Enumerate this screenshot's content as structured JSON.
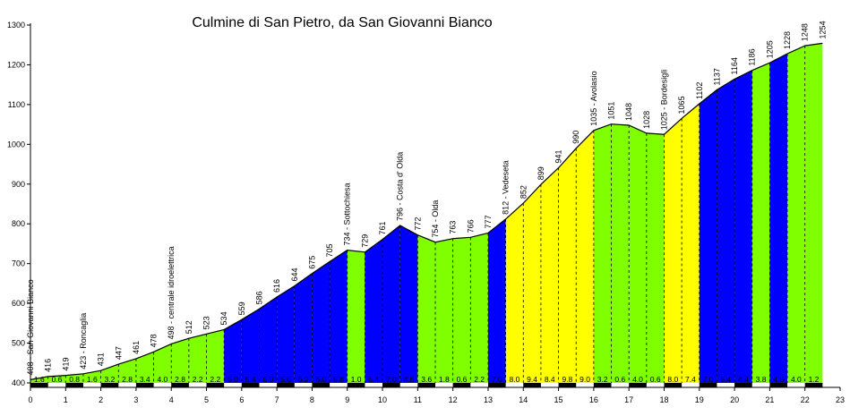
{
  "chart_data": {
    "type": "area",
    "title": "Culmine di San Pietro, da San Giovanni Bianco",
    "xlabel": "",
    "ylabel": "",
    "xlim": [
      0,
      23
    ],
    "ylim": [
      400,
      1300
    ],
    "x_ticks": [
      "0",
      "1",
      "2",
      "3",
      "4",
      "5",
      "6",
      "7",
      "8",
      "9",
      "10",
      "11",
      "12",
      "13",
      "14",
      "15",
      "16",
      "17",
      "18",
      "19",
      "20",
      "21",
      "22",
      "23"
    ],
    "y_ticks": [
      "400",
      "500",
      "600",
      "700",
      "800",
      "900",
      "1000",
      "1100",
      "1200",
      "1300"
    ],
    "grid": false,
    "legend": "none",
    "colors": {
      "green": "#80ff00",
      "blue": "#0000ff",
      "yellow": "#ffff00",
      "profile_line": "#000000",
      "dash": "#000000"
    },
    "profile": [
      {
        "x": 0.0,
        "y": 408,
        "label": "408 - San Giovanni Bianco"
      },
      {
        "x": 0.5,
        "y": 416,
        "label": "416"
      },
      {
        "x": 1.0,
        "y": 419,
        "label": "419"
      },
      {
        "x": 1.5,
        "y": 423,
        "label": "423 - Roncaglia"
      },
      {
        "x": 2.0,
        "y": 431,
        "label": "431"
      },
      {
        "x": 2.5,
        "y": 447,
        "label": "447"
      },
      {
        "x": 3.0,
        "y": 461,
        "label": "461"
      },
      {
        "x": 3.5,
        "y": 478,
        "label": "478"
      },
      {
        "x": 4.0,
        "y": 498,
        "label": "498 - centrale idroelettrica"
      },
      {
        "x": 4.5,
        "y": 512,
        "label": "512"
      },
      {
        "x": 5.0,
        "y": 523,
        "label": "523"
      },
      {
        "x": 5.5,
        "y": 534,
        "label": "534"
      },
      {
        "x": 6.0,
        "y": 559,
        "label": "559"
      },
      {
        "x": 6.5,
        "y": 586,
        "label": "586"
      },
      {
        "x": 7.0,
        "y": 616,
        "label": "616"
      },
      {
        "x": 7.5,
        "y": 644,
        "label": "644"
      },
      {
        "x": 8.0,
        "y": 675,
        "label": "675"
      },
      {
        "x": 8.5,
        "y": 705,
        "label": "705"
      },
      {
        "x": 9.0,
        "y": 734,
        "label": "734 - Sottochiesa"
      },
      {
        "x": 9.5,
        "y": 729,
        "label": "729"
      },
      {
        "x": 10.0,
        "y": 761,
        "label": "761"
      },
      {
        "x": 10.5,
        "y": 796,
        "label": "796 - Costa d' Olda"
      },
      {
        "x": 11.0,
        "y": 772,
        "label": "772"
      },
      {
        "x": 11.5,
        "y": 754,
        "label": "754 - Olda"
      },
      {
        "x": 12.0,
        "y": 763,
        "label": "763"
      },
      {
        "x": 12.5,
        "y": 766,
        "label": "766"
      },
      {
        "x": 13.0,
        "y": 777,
        "label": "777"
      },
      {
        "x": 13.5,
        "y": 812,
        "label": "812 - Vedeseta"
      },
      {
        "x": 14.0,
        "y": 852,
        "label": "852"
      },
      {
        "x": 14.5,
        "y": 899,
        "label": "899"
      },
      {
        "x": 15.0,
        "y": 941,
        "label": "941"
      },
      {
        "x": 15.5,
        "y": 990,
        "label": "990"
      },
      {
        "x": 16.0,
        "y": 1035,
        "label": "1035 - Avolasio"
      },
      {
        "x": 16.5,
        "y": 1051,
        "label": "1051"
      },
      {
        "x": 17.0,
        "y": 1048,
        "label": "1048"
      },
      {
        "x": 17.5,
        "y": 1028,
        "label": "1028"
      },
      {
        "x": 18.0,
        "y": 1025,
        "label": "1025 - Bordesigli"
      },
      {
        "x": 18.5,
        "y": 1065,
        "label": "1065"
      },
      {
        "x": 19.0,
        "y": 1102,
        "label": "1102"
      },
      {
        "x": 19.5,
        "y": 1137,
        "label": "1137"
      },
      {
        "x": 20.0,
        "y": 1164,
        "label": "1164"
      },
      {
        "x": 20.5,
        "y": 1186,
        "label": "1186"
      },
      {
        "x": 21.0,
        "y": 1205,
        "label": "1205"
      },
      {
        "x": 21.5,
        "y": 1228,
        "label": "1228"
      },
      {
        "x": 22.0,
        "y": 1248,
        "label": "1248"
      },
      {
        "x": 22.5,
        "y": 1254,
        "label": "1254"
      }
    ],
    "segments": [
      {
        "x0": 0.0,
        "x1": 0.5,
        "grade": "1.6",
        "color": "green"
      },
      {
        "x0": 0.5,
        "x1": 1.0,
        "grade": "0.6",
        "color": "green"
      },
      {
        "x0": 1.0,
        "x1": 1.5,
        "grade": "0.8",
        "color": "green"
      },
      {
        "x0": 1.5,
        "x1": 2.0,
        "grade": "1.6",
        "color": "green"
      },
      {
        "x0": 2.0,
        "x1": 2.5,
        "grade": "3.2",
        "color": "green"
      },
      {
        "x0": 2.5,
        "x1": 3.0,
        "grade": "2.8",
        "color": "green"
      },
      {
        "x0": 3.0,
        "x1": 3.5,
        "grade": "3.4",
        "color": "green"
      },
      {
        "x0": 3.5,
        "x1": 4.0,
        "grade": "4.0",
        "color": "green"
      },
      {
        "x0": 4.0,
        "x1": 4.5,
        "grade": "2.8",
        "color": "green"
      },
      {
        "x0": 4.5,
        "x1": 5.0,
        "grade": "2.2",
        "color": "green"
      },
      {
        "x0": 5.0,
        "x1": 5.5,
        "grade": "2.2",
        "color": "green"
      },
      {
        "x0": 5.5,
        "x1": 6.0,
        "grade": "5.0",
        "color": "blue"
      },
      {
        "x0": 6.0,
        "x1": 6.5,
        "grade": "5.4",
        "color": "blue"
      },
      {
        "x0": 6.5,
        "x1": 7.0,
        "grade": "6.0",
        "color": "blue"
      },
      {
        "x0": 7.0,
        "x1": 7.5,
        "grade": "5.6",
        "color": "blue"
      },
      {
        "x0": 7.5,
        "x1": 8.0,
        "grade": "6.2",
        "color": "blue"
      },
      {
        "x0": 8.0,
        "x1": 8.5,
        "grade": "6.0",
        "color": "blue"
      },
      {
        "x0": 8.5,
        "x1": 9.0,
        "grade": "5.8",
        "color": "blue"
      },
      {
        "x0": 9.0,
        "x1": 9.5,
        "grade": "1.0",
        "color": "green"
      },
      {
        "x0": 9.5,
        "x1": 10.0,
        "grade": "6.4",
        "color": "blue"
      },
      {
        "x0": 10.0,
        "x1": 10.5,
        "grade": "7.0",
        "color": "blue"
      },
      {
        "x0": 10.5,
        "x1": 11.0,
        "grade": "4.8",
        "color": "blue"
      },
      {
        "x0": 11.0,
        "x1": 11.5,
        "grade": "3.6",
        "color": "green"
      },
      {
        "x0": 11.5,
        "x1": 12.0,
        "grade": "1.8",
        "color": "green"
      },
      {
        "x0": 12.0,
        "x1": 12.5,
        "grade": "0.6",
        "color": "green"
      },
      {
        "x0": 12.5,
        "x1": 13.0,
        "grade": "2.2",
        "color": "green"
      },
      {
        "x0": 13.0,
        "x1": 13.5,
        "grade": "7.0",
        "color": "blue"
      },
      {
        "x0": 13.5,
        "x1": 14.0,
        "grade": "8.0",
        "color": "yellow"
      },
      {
        "x0": 14.0,
        "x1": 14.5,
        "grade": "9.4",
        "color": "yellow"
      },
      {
        "x0": 14.5,
        "x1": 15.0,
        "grade": "8.4",
        "color": "yellow"
      },
      {
        "x0": 15.0,
        "x1": 15.5,
        "grade": "9.8",
        "color": "yellow"
      },
      {
        "x0": 15.5,
        "x1": 16.0,
        "grade": "9.0",
        "color": "yellow"
      },
      {
        "x0": 16.0,
        "x1": 16.5,
        "grade": "3.2",
        "color": "green"
      },
      {
        "x0": 16.5,
        "x1": 17.0,
        "grade": "0.6",
        "color": "green"
      },
      {
        "x0": 17.0,
        "x1": 17.5,
        "grade": "4.0",
        "color": "green"
      },
      {
        "x0": 17.5,
        "x1": 18.0,
        "grade": "0.6",
        "color": "green"
      },
      {
        "x0": 18.0,
        "x1": 18.5,
        "grade": "8.0",
        "color": "yellow"
      },
      {
        "x0": 18.5,
        "x1": 19.0,
        "grade": "7.4",
        "color": "yellow"
      },
      {
        "x0": 19.0,
        "x1": 19.5,
        "grade": "7.0",
        "color": "blue"
      },
      {
        "x0": 19.5,
        "x1": 20.0,
        "grade": "5.4",
        "color": "blue"
      },
      {
        "x0": 20.0,
        "x1": 20.5,
        "grade": "4.4",
        "color": "blue"
      },
      {
        "x0": 20.5,
        "x1": 21.0,
        "grade": "3.8",
        "color": "green"
      },
      {
        "x0": 21.0,
        "x1": 21.5,
        "grade": "4.6",
        "color": "blue"
      },
      {
        "x0": 21.5,
        "x1": 22.0,
        "grade": "4.0",
        "color": "green"
      },
      {
        "x0": 22.0,
        "x1": 22.5,
        "grade": "1.2",
        "color": "green"
      }
    ]
  }
}
